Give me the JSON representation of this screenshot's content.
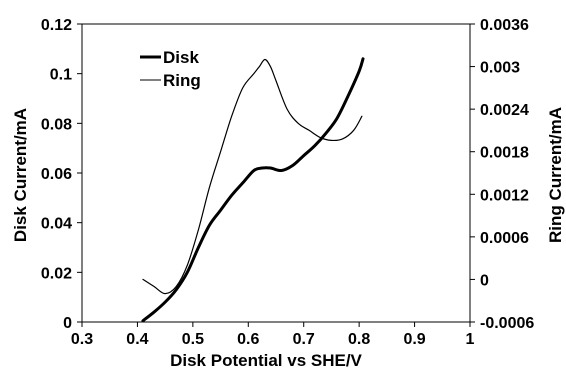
{
  "chart_data": {
    "type": "line",
    "xlabel": "Disk Potential vs SHE/V",
    "ylabel": "Disk Current/mA",
    "y2label": "Ring Current/mA",
    "xlim": [
      0.3,
      1
    ],
    "ylim": [
      0,
      0.12
    ],
    "y2lim": [
      -0.0006,
      0.0036
    ],
    "x_ticks": [
      "0.3",
      "0.4",
      "0.5",
      "0.6",
      "0.7",
      "0.8",
      "0.9",
      "1"
    ],
    "y_ticks": [
      "0",
      "0.02",
      "0.04",
      "0.06",
      "0.08",
      "0.1",
      "0.12"
    ],
    "y2_ticks": [
      "-0.0006",
      "0",
      "0.0006",
      "0.0012",
      "0.0018",
      "0.0024",
      "0.003",
      "0.0036"
    ],
    "grid": false,
    "legend_position": "top-left",
    "series": [
      {
        "name": "Disk",
        "axis": "left",
        "style": "thick",
        "color": "#000000",
        "x": [
          0.41,
          0.43,
          0.45,
          0.47,
          0.49,
          0.51,
          0.53,
          0.55,
          0.57,
          0.59,
          0.61,
          0.625,
          0.64,
          0.66,
          0.68,
          0.7,
          0.72,
          0.74,
          0.76,
          0.78,
          0.8,
          0.807
        ],
        "y": [
          0.0005,
          0.004,
          0.008,
          0.013,
          0.02,
          0.03,
          0.039,
          0.045,
          0.051,
          0.056,
          0.061,
          0.062,
          0.062,
          0.061,
          0.063,
          0.067,
          0.071,
          0.076,
          0.082,
          0.091,
          0.101,
          0.106
        ]
      },
      {
        "name": "Ring",
        "axis": "right",
        "style": "thin",
        "color": "#000000",
        "x": [
          0.41,
          0.43,
          0.45,
          0.47,
          0.49,
          0.51,
          0.53,
          0.55,
          0.57,
          0.59,
          0.61,
          0.62,
          0.63,
          0.64,
          0.65,
          0.67,
          0.69,
          0.71,
          0.73,
          0.75,
          0.77,
          0.79,
          0.805
        ],
        "y": [
          0.0,
          -0.0001,
          -0.0002,
          -0.0001,
          0.0002,
          0.0007,
          0.0013,
          0.0018,
          0.0023,
          0.0027,
          0.0029,
          0.003,
          0.0031,
          0.003,
          0.0028,
          0.0024,
          0.0022,
          0.0021,
          0.002,
          0.00196,
          0.00198,
          0.0021,
          0.0023
        ]
      }
    ]
  }
}
